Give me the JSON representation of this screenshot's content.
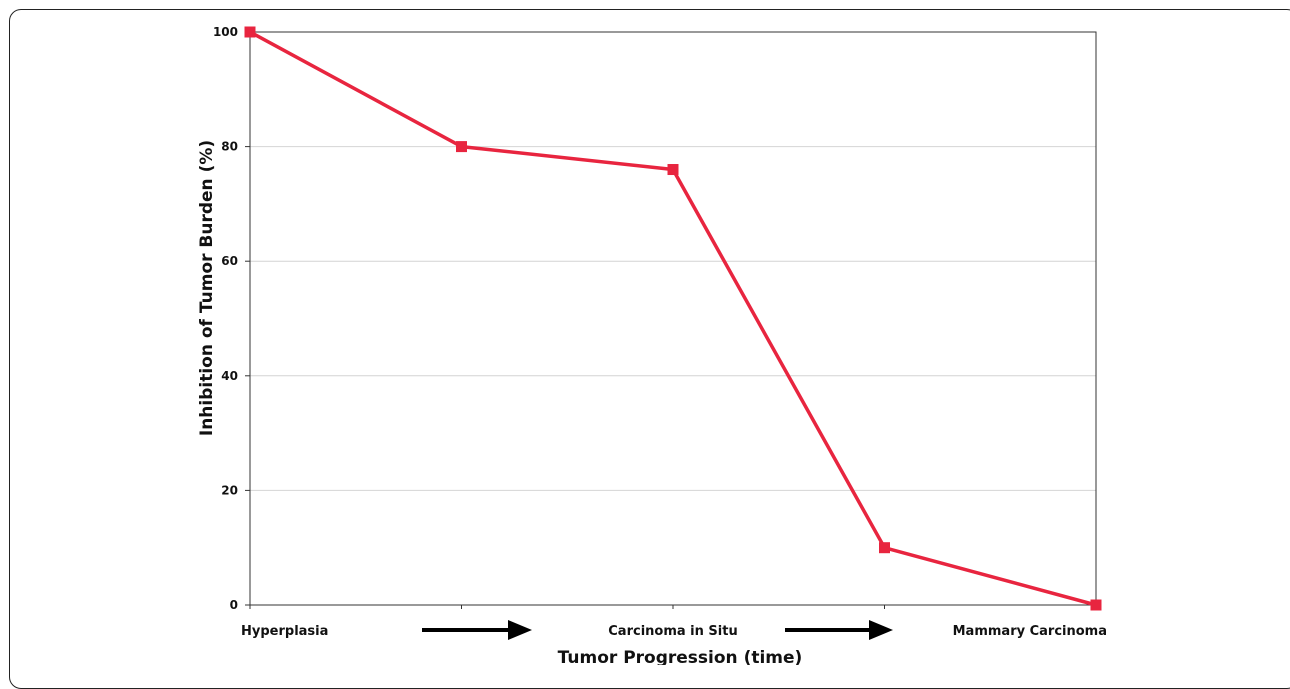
{
  "chart_data": {
    "type": "line",
    "categories": [
      "Hyperplasia",
      "",
      "Carcinoma in Situ",
      "",
      "Mammary Carcinoma"
    ],
    "values": [
      100,
      80,
      76,
      10,
      0
    ],
    "ylim": [
      0,
      100
    ],
    "yticks": [
      "0",
      "20",
      "40",
      "60",
      "80",
      "100"
    ],
    "xlabel": "Tumor Progression (time)",
    "ylabel": "Inhibition of Tumor Burden (%)",
    "grid": true,
    "colors": {
      "line": "#e8253f",
      "grid": "#d4d4d4",
      "axis": "#333333",
      "arrow": "#000000"
    }
  }
}
